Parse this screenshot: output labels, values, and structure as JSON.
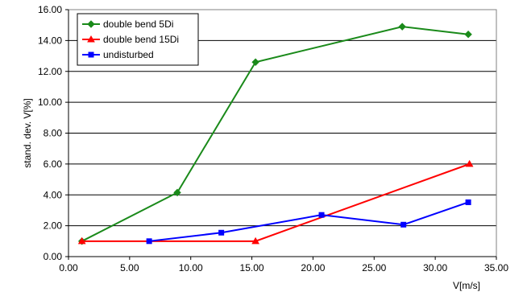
{
  "chart_data": {
    "type": "line",
    "xlabel": "V[m/s]",
    "ylabel": "stand. dev. V[%]",
    "xlim": [
      0,
      35
    ],
    "ylim": [
      0,
      16
    ],
    "x_ticks": [
      "0.00",
      "5.00",
      "10.00",
      "15.00",
      "20.00",
      "25.00",
      "30.00",
      "35.00"
    ],
    "y_ticks": [
      "0.00",
      "2.00",
      "4.00",
      "6.00",
      "8.00",
      "10.00",
      "12.00",
      "14.00",
      "16.00"
    ],
    "grid": "horizontal",
    "legend_position": "top-left",
    "series": [
      {
        "name": "double bend 5Di",
        "color": "#1a8a1a",
        "marker": "diamond",
        "x": [
          1.1,
          8.9,
          15.3,
          27.3,
          32.7
        ],
        "y": [
          1.0,
          4.15,
          12.6,
          14.9,
          14.4
        ]
      },
      {
        "name": "double bend 15Di",
        "color": "#ff0000",
        "marker": "triangle",
        "x": [
          1.1,
          15.3,
          32.8
        ],
        "y": [
          1.0,
          1.0,
          6.0
        ]
      },
      {
        "name": "undisturbed",
        "color": "#0000ff",
        "marker": "square",
        "x": [
          6.6,
          12.5,
          20.7,
          27.4,
          32.7
        ],
        "y": [
          1.0,
          1.55,
          2.7,
          2.07,
          3.52
        ]
      }
    ]
  }
}
